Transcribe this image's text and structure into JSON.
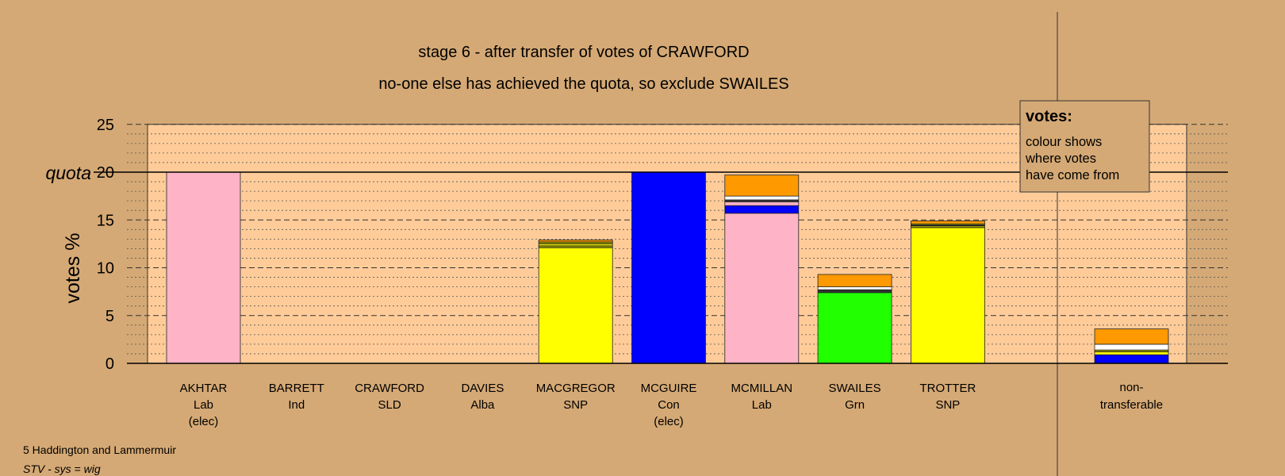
{
  "header": {
    "title": "stage 6 - after transfer of votes of CRAWFORD",
    "subtitle": "no-one else has achieved the quota, so exclude SWAILES"
  },
  "legend": {
    "title": "votes:",
    "lines": [
      "colour shows",
      "where votes",
      "have come from"
    ]
  },
  "footer": {
    "line1": "5 Haddington and Lammermuir",
    "line2": "STV - sys = wig"
  },
  "chart_data": {
    "type": "bar",
    "stacked": true,
    "ylabel": "votes %",
    "ylim": [
      0,
      25
    ],
    "yticks": [
      0,
      5,
      10,
      15,
      20,
      25
    ],
    "quota": 20,
    "quota_label": "quota",
    "grid": true,
    "colors": {
      "Lab": "#ffb3c6",
      "SNP": "#ffff00",
      "Con": "#0000ff",
      "Grn": "#22ff00",
      "LD": "#ff9900",
      "white": "#ffffff",
      "olive": "#999900",
      "dark": "#333333"
    },
    "categories": [
      {
        "name": "AKHTAR",
        "party": "Lab",
        "note": "(elec)",
        "segments": [
          {
            "color": "#ffb3c6",
            "value": 20.0
          }
        ]
      },
      {
        "name": "BARRETT",
        "party": "Ind",
        "note": "",
        "segments": []
      },
      {
        "name": "CRAWFORD",
        "party": "SLD",
        "note": "",
        "segments": []
      },
      {
        "name": "DAVIES",
        "party": "Alba",
        "note": "",
        "segments": []
      },
      {
        "name": "MACGREGOR",
        "party": "SNP",
        "note": "",
        "segments": [
          {
            "color": "#ffff00",
            "value": 12.1
          },
          {
            "color": "#999900",
            "value": 0.2
          },
          {
            "color": "#ffff00",
            "value": 0.2
          },
          {
            "color": "#999900",
            "value": 0.2
          },
          {
            "color": "#ff9900",
            "value": 0.2
          }
        ]
      },
      {
        "name": "MCGUIRE",
        "party": "Con",
        "note": "(elec)",
        "segments": [
          {
            "color": "#0000ff",
            "value": 20.0
          }
        ]
      },
      {
        "name": "MCMILLAN",
        "party": "Lab",
        "note": "",
        "segments": [
          {
            "color": "#ffb3c6",
            "value": 15.7
          },
          {
            "color": "#0000ff",
            "value": 0.8
          },
          {
            "color": "#ffb3c6",
            "value": 0.4
          },
          {
            "color": "#333333",
            "value": 0.2
          },
          {
            "color": "#ffffff",
            "value": 0.4
          },
          {
            "color": "#ff9900",
            "value": 2.2
          }
        ]
      },
      {
        "name": "SWAILES",
        "party": "Grn",
        "note": "",
        "segments": [
          {
            "color": "#22ff00",
            "value": 7.4
          },
          {
            "color": "#333333",
            "value": 0.3
          },
          {
            "color": "#ffffff",
            "value": 0.3
          },
          {
            "color": "#ff9900",
            "value": 1.3
          }
        ]
      },
      {
        "name": "TROTTER",
        "party": "SNP",
        "note": "",
        "segments": [
          {
            "color": "#ffff00",
            "value": 14.2
          },
          {
            "color": "#999900",
            "value": 0.2
          },
          {
            "color": "#333333",
            "value": 0.1
          },
          {
            "color": "#ffff00",
            "value": 0.1
          },
          {
            "color": "#ff9900",
            "value": 0.3
          }
        ]
      }
    ],
    "nontransferable": {
      "label1": "non-",
      "label2": "transferable",
      "segments": [
        {
          "color": "#0000ff",
          "value": 0.9
        },
        {
          "color": "#ffff00",
          "value": 0.3
        },
        {
          "color": "#999900",
          "value": 0.2
        },
        {
          "color": "#ffffff",
          "value": 0.6
        },
        {
          "color": "#ff9900",
          "value": 1.6
        }
      ]
    }
  }
}
